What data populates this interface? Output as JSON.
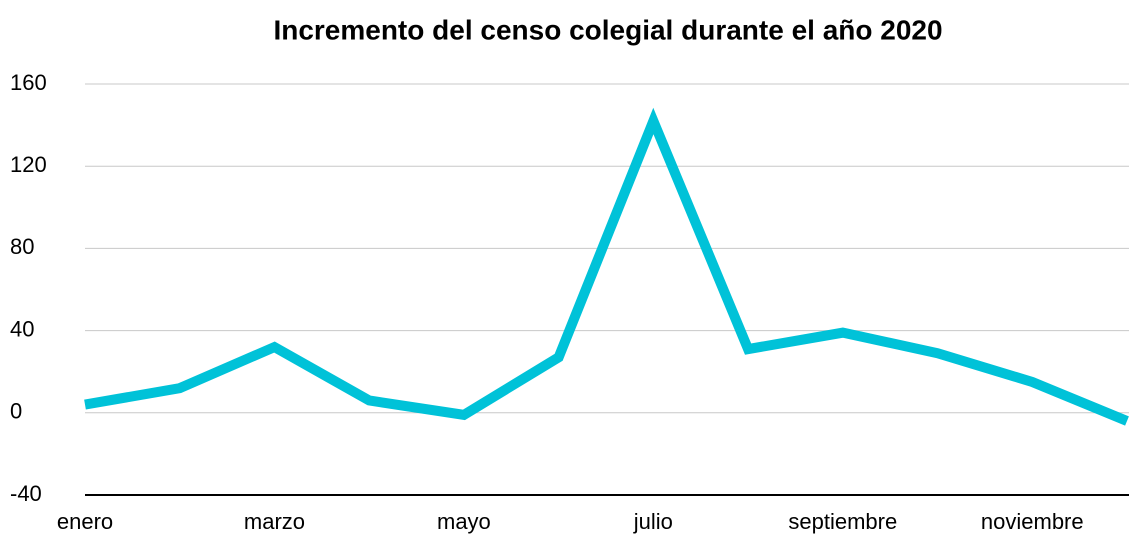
{
  "chart_data": {
    "type": "line",
    "title": "Incremento del censo colegial durante el año 2020",
    "categories": [
      "enero",
      null,
      "marzo",
      null,
      "mayo",
      null,
      "julio",
      null,
      "septiembre",
      null,
      "noviembre",
      null
    ],
    "series": [
      {
        "name": "Incremento",
        "color": "#00c2d8",
        "values": [
          4,
          12,
          32,
          6,
          -1,
          27,
          142,
          31,
          39,
          29,
          15,
          -4
        ]
      }
    ],
    "ylim": [
      -40,
      160
    ],
    "yticks": [
      -40,
      0,
      40,
      80,
      120,
      160
    ],
    "grid": true
  }
}
